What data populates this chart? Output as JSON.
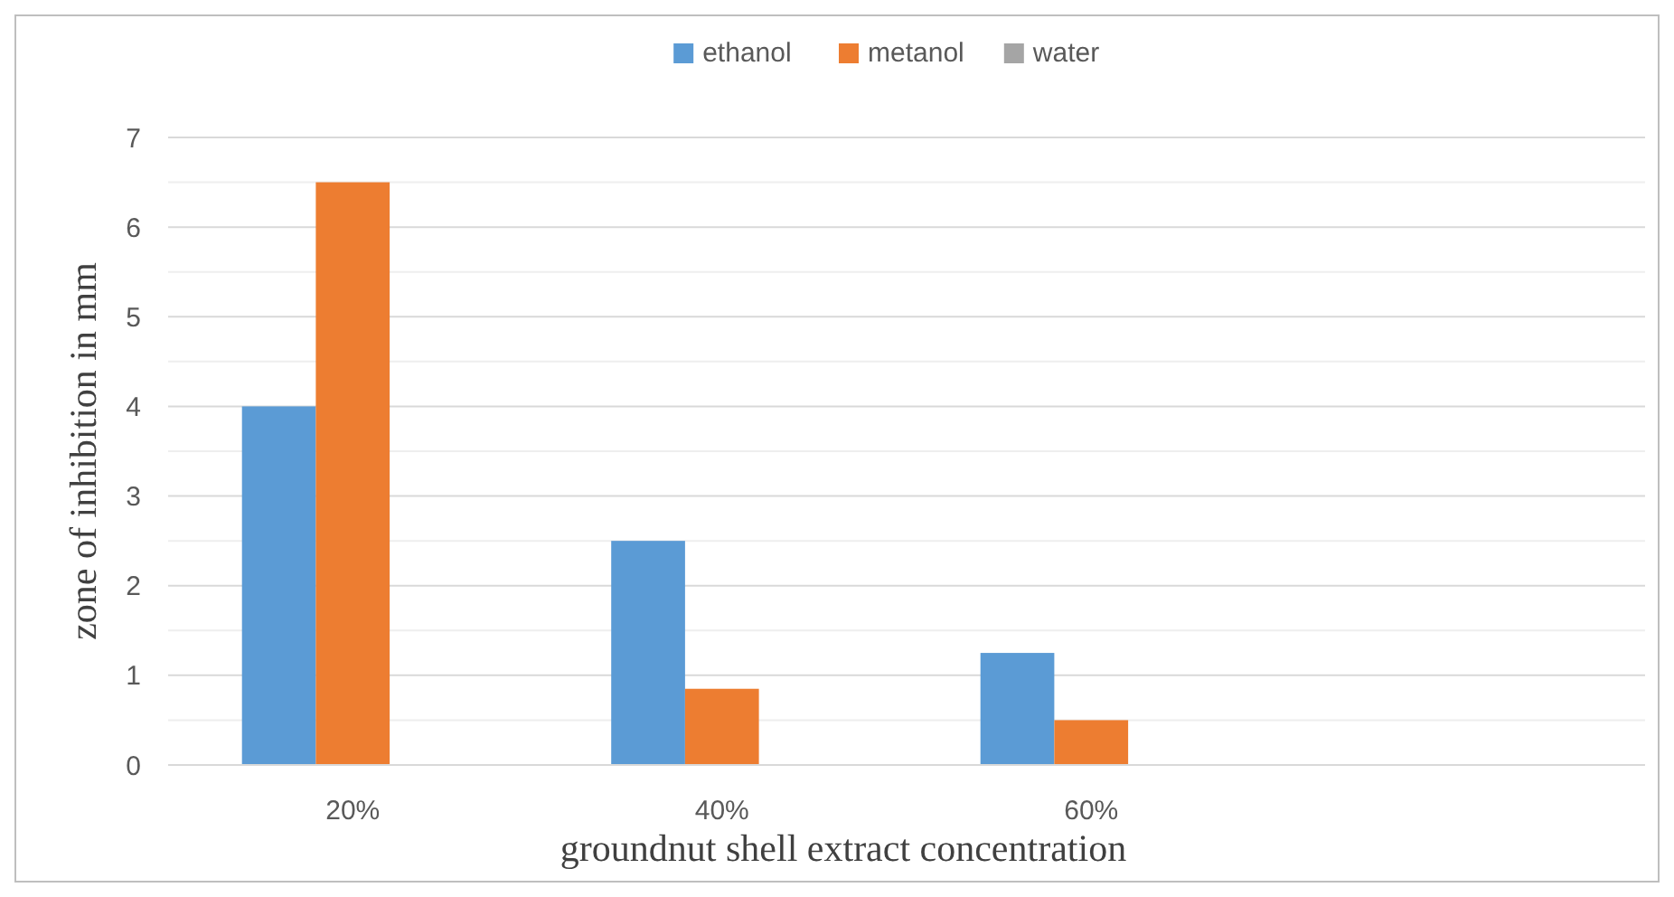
{
  "chart_data": {
    "type": "bar",
    "xlabel": "groundnut shell extract concentration",
    "ylabel": "zone of inhibition in mm",
    "categories": [
      "20%",
      "40%",
      "60%",
      null
    ],
    "series": [
      {
        "name": "ethanol",
        "color": "#5b9bd5",
        "values": [
          4,
          2.5,
          1.25,
          null
        ]
      },
      {
        "name": "metanol",
        "color": "#ed7d31",
        "values": [
          6.5,
          0.85,
          0.5,
          null
        ]
      },
      {
        "name": "water",
        "color": "#a5a5a5",
        "values": [
          0,
          0,
          0,
          null
        ]
      }
    ],
    "ylim": [
      0,
      7
    ],
    "yticks": [
      0,
      {
        "value": 0.5,
        "label": null
      },
      1,
      {
        "value": 1.5,
        "label": null
      },
      2,
      {
        "value": 2.5,
        "label": null
      },
      3,
      {
        "value": 3.5,
        "label": null
      },
      4,
      {
        "value": 4.5,
        "label": null
      },
      5,
      {
        "value": 5.5,
        "label": null
      },
      6,
      {
        "value": 6.5,
        "label": null
      },
      7
    ],
    "grid": "y",
    "legend": "top"
  }
}
